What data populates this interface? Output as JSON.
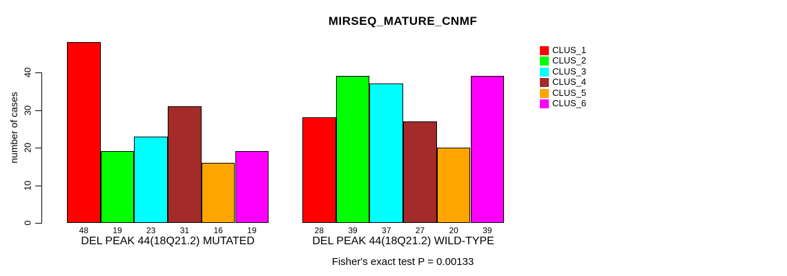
{
  "chart_data": {
    "type": "bar",
    "title": "MIRSEQ_MATURE_CNMF",
    "ylabel": "number of cases",
    "ylim": [
      0,
      48
    ],
    "yticks": [
      0,
      10,
      20,
      30,
      40
    ],
    "grid": false,
    "legend_position": "top-right",
    "legend": [
      {
        "label": "CLUS_1",
        "color": "#FF0000"
      },
      {
        "label": "CLUS_2",
        "color": "#00FF00"
      },
      {
        "label": "CLUS_3",
        "color": "#00FFFF"
      },
      {
        "label": "CLUS_4",
        "color": "#A52A2A"
      },
      {
        "label": "CLUS_5",
        "color": "#FFA500"
      },
      {
        "label": "CLUS_6",
        "color": "#FF00FF"
      }
    ],
    "series_colors": [
      "#FF0000",
      "#00FF00",
      "#00FFFF",
      "#A52A2A",
      "#FFA500",
      "#FF00FF"
    ],
    "groups": [
      {
        "label": "DEL PEAK 44(18Q21.2) MUTATED",
        "values": [
          48,
          19,
          23,
          31,
          16,
          19
        ]
      },
      {
        "label": "DEL PEAK 44(18Q21.2) WILD-TYPE",
        "values": [
          28,
          39,
          37,
          27,
          20,
          39
        ]
      }
    ],
    "annotation": "Fisher's exact test P = 0.00133",
    "text_color": "#000000",
    "background_color": "#FFFFFF"
  }
}
